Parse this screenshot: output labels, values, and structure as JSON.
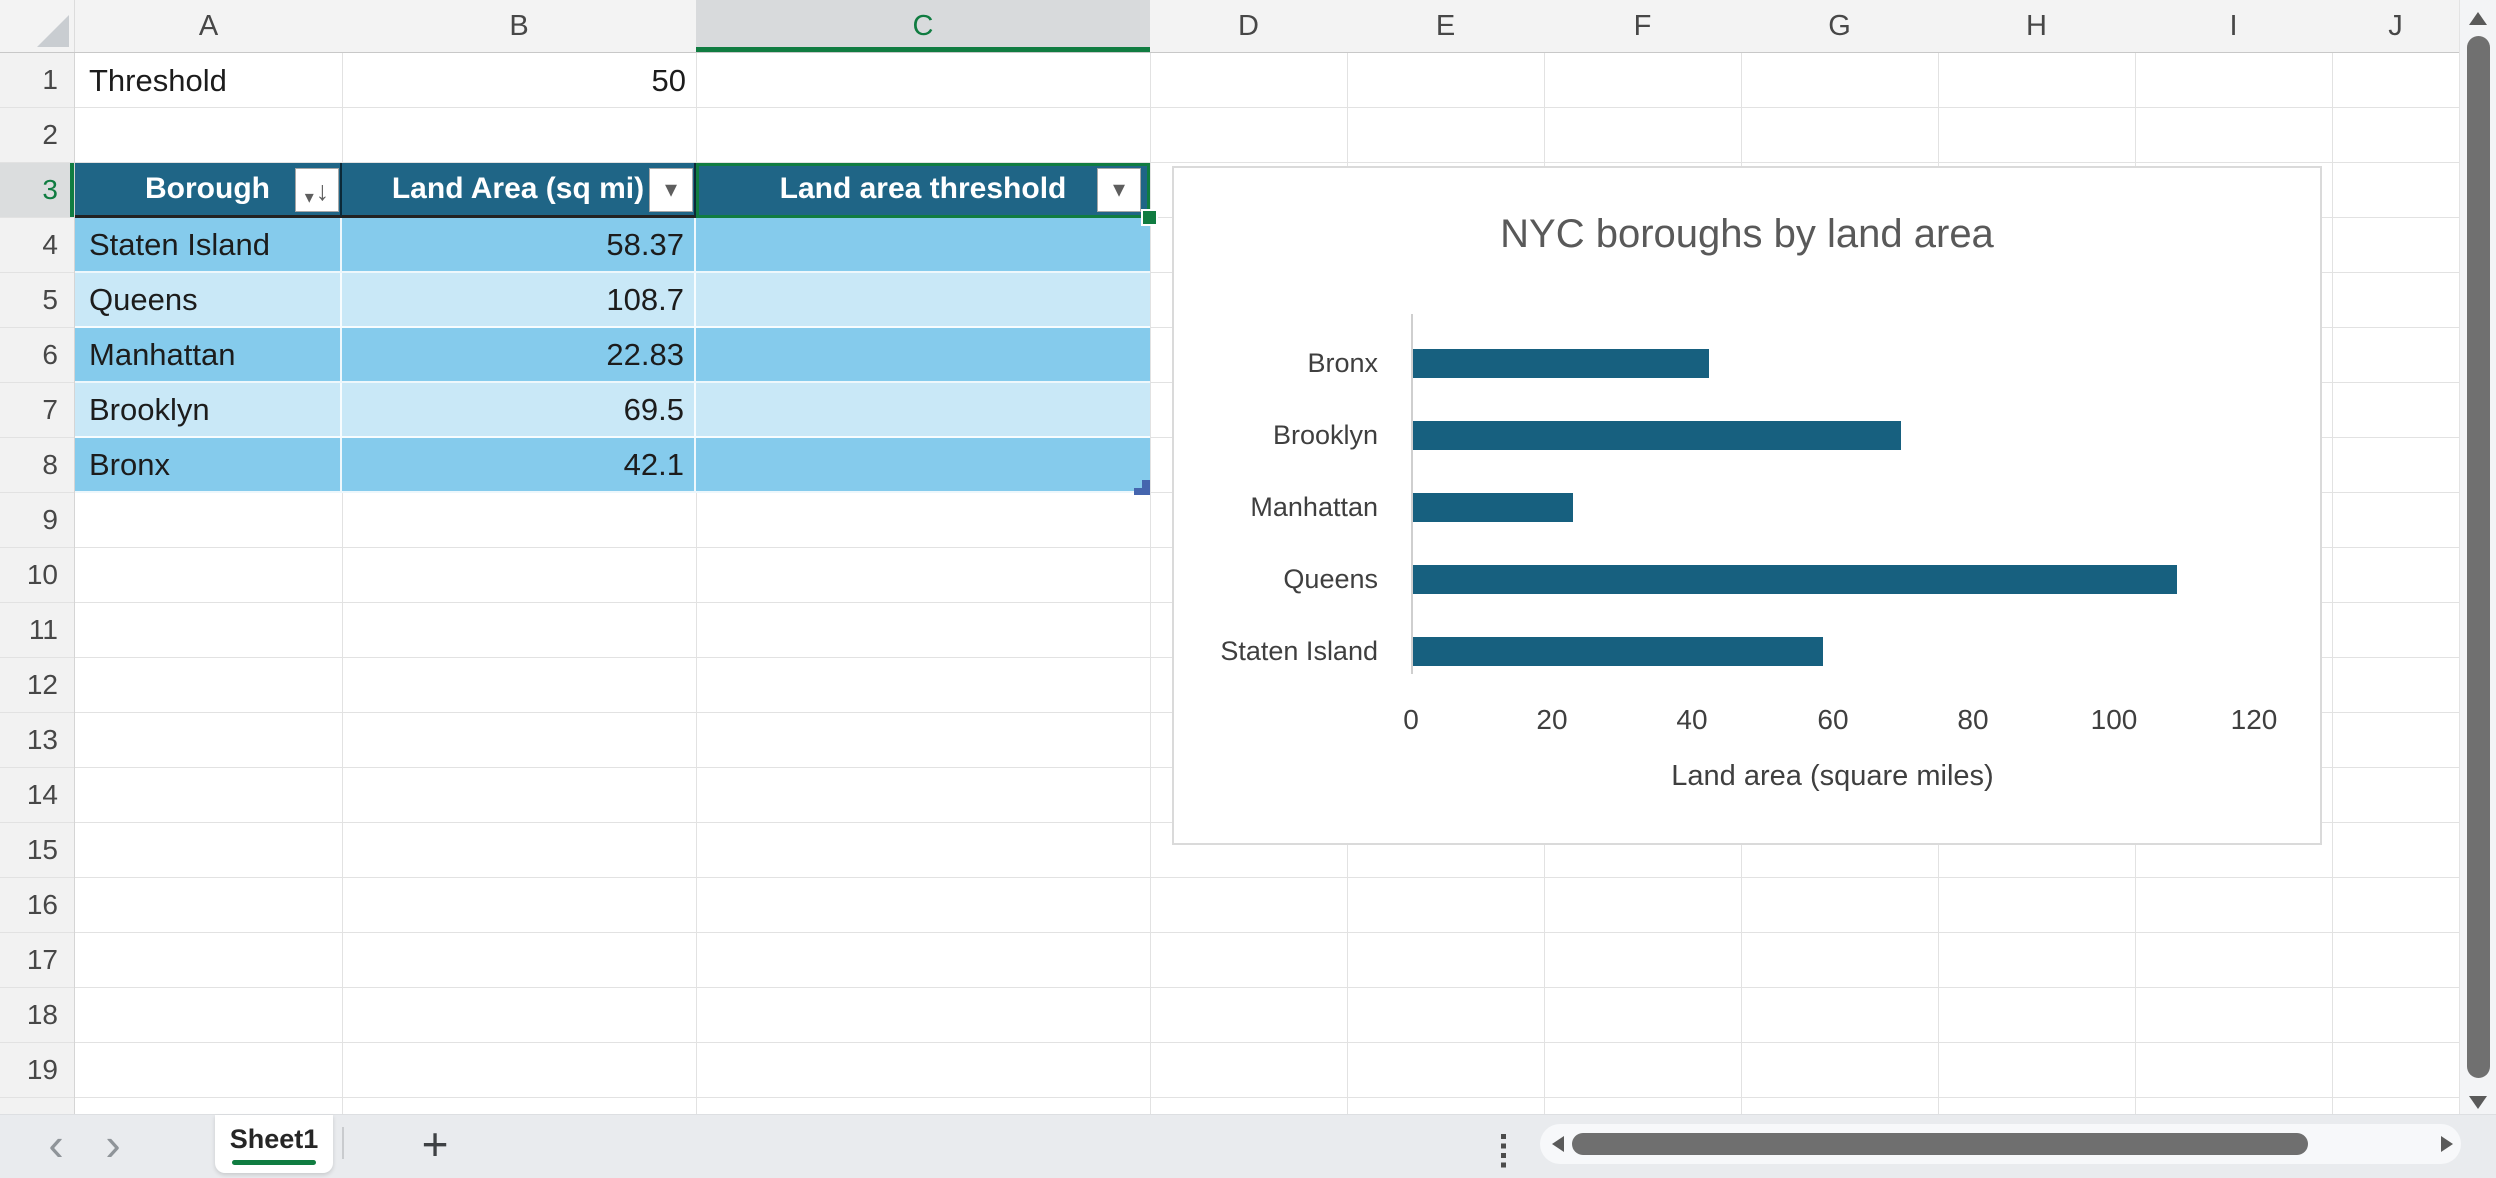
{
  "grid": {
    "column_letters": [
      "A",
      "B",
      "C",
      "D",
      "E",
      "F",
      "G",
      "H",
      "I",
      "J"
    ],
    "row_numbers": [
      1,
      2,
      3,
      4,
      5,
      6,
      7,
      8,
      9,
      10,
      11,
      12,
      13,
      14,
      15,
      16,
      17,
      18,
      19
    ],
    "selected_column": "C",
    "selected_row": 3
  },
  "cells": {
    "a1": "Threshold",
    "b1": "50"
  },
  "table": {
    "columns": [
      {
        "label": "Borough",
        "sorted": "descending",
        "has_filter": true
      },
      {
        "label": "Land Area (sq mi)",
        "has_filter": true
      },
      {
        "label": "Land area threshold",
        "has_filter": true
      }
    ],
    "rows": [
      {
        "cells": [
          "Staten Island",
          "58.37",
          ""
        ]
      },
      {
        "cells": [
          "Queens",
          "108.7",
          ""
        ]
      },
      {
        "cells": [
          "Manhattan",
          "22.83",
          ""
        ]
      },
      {
        "cells": [
          "Brooklyn",
          "69.5",
          ""
        ]
      },
      {
        "cells": [
          "Bronx",
          "42.1",
          ""
        ]
      }
    ],
    "colors": {
      "header_bg": "#1F6586",
      "band_dark": "#85CBEC",
      "band_light": "#C9E8F7",
      "header_text": "#FFFFFF"
    }
  },
  "selection": {
    "active_cell": "C3",
    "accent": "#107C41"
  },
  "chart_data": {
    "type": "bar",
    "orientation": "horizontal",
    "title": "NYC boroughs by land area",
    "categories": [
      "Bronx",
      "Brooklyn",
      "Manhattan",
      "Queens",
      "Staten Island"
    ],
    "values": [
      42.1,
      69.5,
      22.83,
      108.7,
      58.37
    ],
    "xlabel": "Land area (square miles)",
    "xlim": [
      0,
      120
    ],
    "xticks": [
      0,
      20,
      40,
      60,
      80,
      100,
      120
    ],
    "grid": false,
    "legend": false,
    "bar_color": "#17607F",
    "title_color": "#595959"
  },
  "sheet_bar": {
    "active_tab": "Sheet1",
    "add_sheet_label": "+",
    "nav_prev": "‹",
    "nav_next": "›"
  },
  "icons": {
    "filter_dropdown": "▾",
    "sort_descending": "↓"
  }
}
